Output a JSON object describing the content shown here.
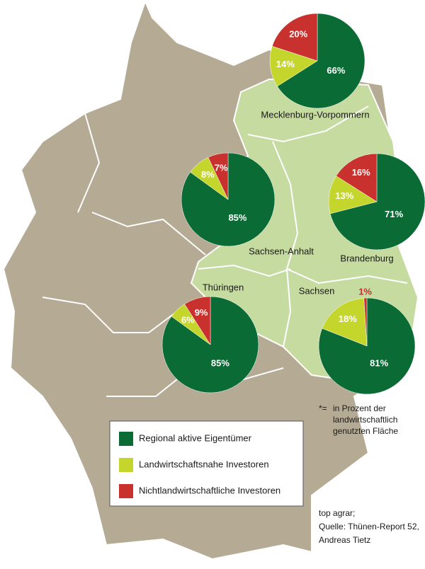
{
  "chart_data": [
    {
      "type": "pie",
      "title": "Mecklenburg-Vorpommern",
      "values": [
        66,
        14,
        20
      ],
      "value_labels": [
        "66%",
        "14%",
        "20%"
      ]
    },
    {
      "type": "pie",
      "title": "Sachsen-Anhalt",
      "values": [
        85,
        8,
        7
      ],
      "value_labels": [
        "85%",
        "8%",
        "7%"
      ]
    },
    {
      "type": "pie",
      "title": "Brandenburg",
      "values": [
        71,
        13,
        16
      ],
      "value_labels": [
        "71%",
        "13%",
        "16%"
      ]
    },
    {
      "type": "pie",
      "title": "Thüringen",
      "values": [
        85,
        6,
        9
      ],
      "value_labels": [
        "85%",
        "6%",
        "9%"
      ]
    },
    {
      "type": "pie",
      "title": "Sachsen",
      "values": [
        81,
        18,
        1
      ],
      "value_labels": [
        "81%",
        "18%",
        "1%"
      ]
    }
  ],
  "legend": [
    {
      "name": "Regional aktive Eigentümer",
      "color": "#0b6b35"
    },
    {
      "name": "Landwirtschaftsnahe Investoren",
      "color": "#c4d62c"
    },
    {
      "name": "Nichtlandwirtschaftliche Investoren",
      "color": "#c8312e"
    }
  ],
  "footnote": {
    "marker": "*=",
    "lines": [
      "in Prozent der",
      "landwirtschaftlich",
      "genutzten Fläche"
    ]
  },
  "source": [
    "top agrar;",
    "Quelle: Thünen-Report 52,",
    "Andreas Tietz"
  ]
}
